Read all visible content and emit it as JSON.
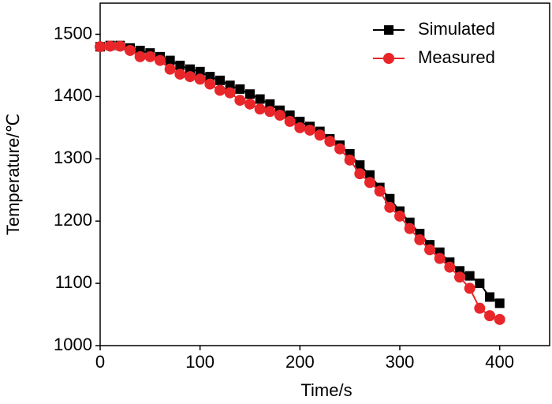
{
  "chart_data": {
    "type": "line",
    "x_label": "Time/s",
    "y_label": "Temperature/℃",
    "x": [
      0,
      10,
      20,
      30,
      40,
      50,
      60,
      70,
      80,
      90,
      100,
      110,
      120,
      130,
      140,
      150,
      160,
      170,
      180,
      190,
      200,
      210,
      220,
      230,
      240,
      250,
      260,
      270,
      280,
      290,
      300,
      310,
      320,
      330,
      340,
      350,
      360,
      370,
      380,
      390,
      400
    ],
    "series": [
      {
        "name": "Simulated",
        "color": "#000000",
        "marker": "square",
        "values": [
          1480,
          1482,
          1482,
          1478,
          1474,
          1470,
          1464,
          1458,
          1450,
          1444,
          1440,
          1432,
          1426,
          1418,
          1412,
          1404,
          1396,
          1388,
          1378,
          1370,
          1360,
          1352,
          1344,
          1332,
          1322,
          1308,
          1290,
          1274,
          1254,
          1236,
          1216,
          1198,
          1180,
          1162,
          1150,
          1134,
          1120,
          1112,
          1100,
          1078,
          1068
        ]
      },
      {
        "name": "Measured",
        "color": "#e8262a",
        "marker": "circle",
        "values": [
          1480,
          1481,
          1481,
          1474,
          1464,
          1464,
          1458,
          1444,
          1436,
          1432,
          1428,
          1420,
          1410,
          1406,
          1394,
          1388,
          1380,
          1376,
          1370,
          1360,
          1350,
          1346,
          1338,
          1328,
          1316,
          1298,
          1276,
          1262,
          1248,
          1222,
          1208,
          1188,
          1170,
          1154,
          1140,
          1126,
          1110,
          1092,
          1060,
          1048,
          1042
        ]
      }
    ],
    "xlim": [
      0,
      450
    ],
    "xticks": [
      0,
      100,
      200,
      300,
      400
    ],
    "ylim": [
      1000,
      1550
    ],
    "yticks": [
      1000,
      1100,
      1200,
      1300,
      1400,
      1500
    ],
    "legend": "upper right"
  }
}
